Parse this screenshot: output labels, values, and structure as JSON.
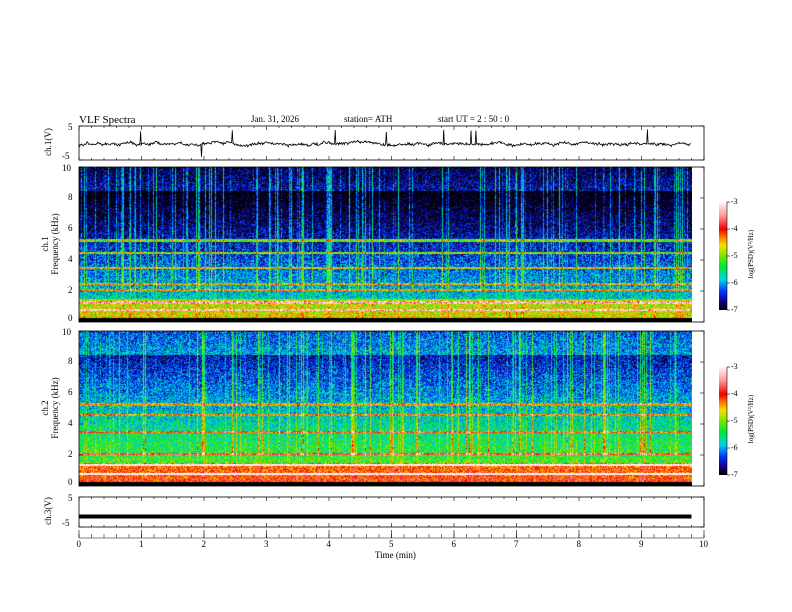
{
  "header": {
    "title": "VLF  Spectra",
    "date": "Jan. 31, 2026",
    "station": "station= ATH",
    "start": "start  UT  =   2  : 50 : 0"
  },
  "chart_data": [
    {
      "type": "line",
      "name": "ch1 waveform",
      "ylabel": "ch.1(V)",
      "ylim": [
        -5,
        5
      ],
      "yticks": [
        "5",
        "-5"
      ],
      "baseline": -0.3
    },
    {
      "type": "heatmap",
      "name": "ch1 spectrogram",
      "ylabel": "ch.1\nFrequency (kHz)",
      "ylabel_a": "ch.1",
      "ylabel_b": "Frequency  (kHz)",
      "ylim": [
        0,
        10
      ],
      "yticks": [
        "10",
        "8",
        "6",
        "4",
        "2",
        "0"
      ],
      "lines_khz": [
        5.3,
        4.5,
        3.5,
        2.5,
        2.1,
        1.3,
        0.8
      ],
      "colorbar": {
        "label": "log(PSD)(V²/Hz)",
        "range": [
          -7,
          -3
        ],
        "ticks": [
          "-3",
          "-4",
          "-5",
          "-6",
          "-7"
        ]
      }
    },
    {
      "type": "heatmap",
      "name": "ch2 spectrogram",
      "ylabel_a": "ch.2",
      "ylabel_b": "Frequency  (kHz)",
      "ylim": [
        0,
        10
      ],
      "yticks": [
        "10",
        "8",
        "6",
        "4",
        "2",
        "0"
      ],
      "lines_khz": [
        5.3,
        4.6,
        3.5,
        2.1,
        1.4,
        0.8
      ],
      "colorbar": {
        "label": "log(PSD)(V²/Hz)",
        "range": [
          -7,
          -3
        ],
        "ticks": [
          "-3",
          "-4",
          "-5",
          "-6",
          "-7"
        ]
      }
    },
    {
      "type": "line",
      "name": "ch3 waveform",
      "ylabel": "ch.3(V)",
      "ylim": [
        -5,
        5
      ],
      "yticks": [
        "5",
        "-5"
      ],
      "baseline": -1.5
    }
  ],
  "xaxis": {
    "label": "Time  (min)",
    "range": [
      0,
      10
    ],
    "data_end": 9.8,
    "ticks": [
      "0",
      "1",
      "2",
      "3",
      "4",
      "5",
      "6",
      "7",
      "8",
      "9",
      "10"
    ]
  }
}
